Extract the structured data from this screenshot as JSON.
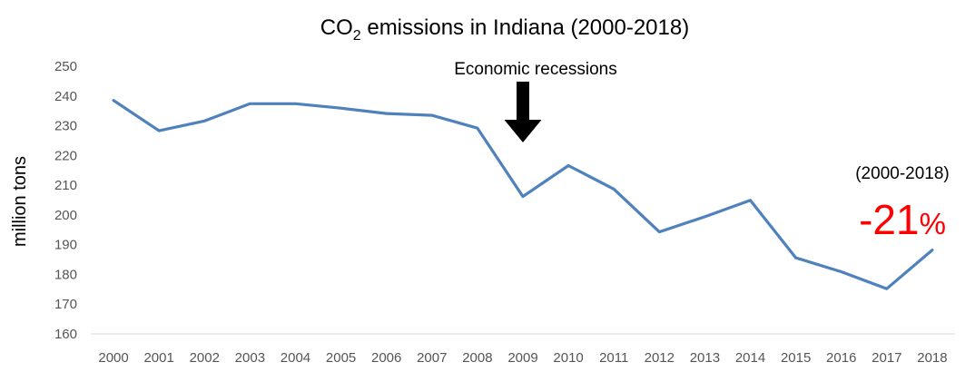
{
  "chart_data": {
    "type": "line",
    "title_prefix": "CO",
    "title_subscript": "2",
    "title_suffix": " emissions in Indiana (2000-2018)",
    "ylabel": "million tons",
    "xlabel": "",
    "ylim": [
      160,
      250
    ],
    "yticks": [
      160,
      170,
      180,
      190,
      200,
      210,
      220,
      230,
      240,
      250
    ],
    "categories": [
      "2000",
      "2001",
      "2002",
      "2003",
      "2004",
      "2005",
      "2006",
      "2007",
      "2008",
      "2009",
      "2010",
      "2011",
      "2012",
      "2013",
      "2014",
      "2015",
      "2016",
      "2017",
      "2018"
    ],
    "series": [
      {
        "name": "CO2 emissions",
        "color": "#4f81bd",
        "values": [
          238.5,
          228.3,
          231.6,
          237.4,
          237.4,
          235.9,
          234.1,
          233.5,
          229.2,
          206.2,
          216.6,
          208.7,
          194.3,
          199.4,
          204.9,
          185.6,
          180.9,
          175.2,
          188.2
        ]
      }
    ],
    "annotations": {
      "recession_label": "Economic recessions",
      "recession_year": "2009",
      "period_label": "(2000-2018)",
      "change_value": "-21",
      "change_unit": "%",
      "change_color": "#ff0000"
    }
  }
}
